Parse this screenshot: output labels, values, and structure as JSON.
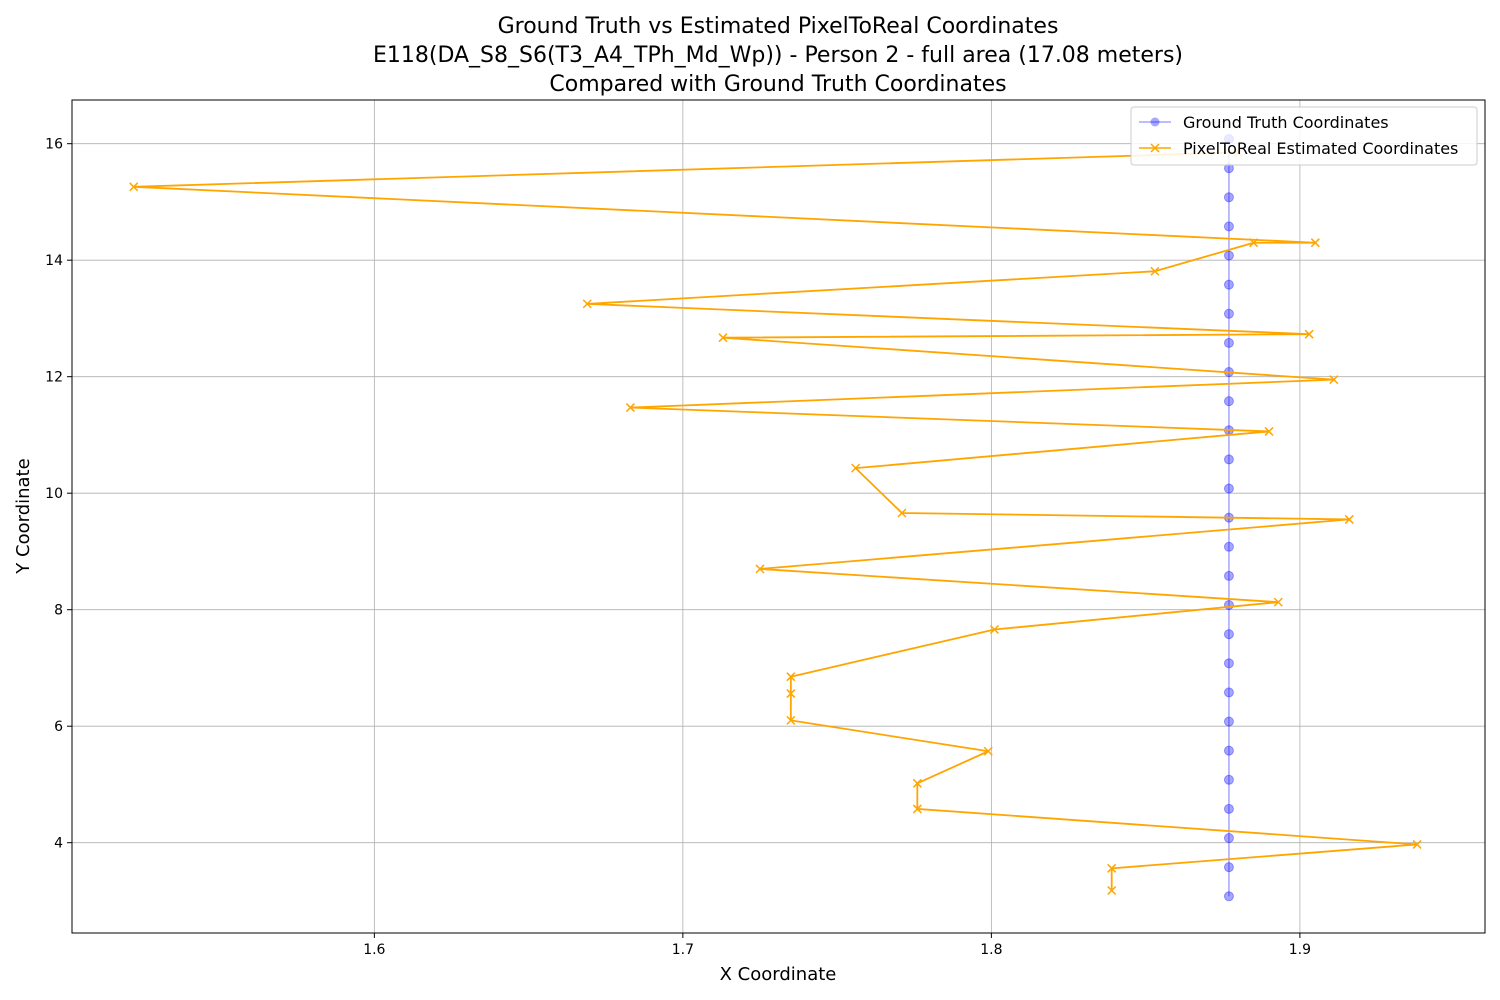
{
  "chart_data": {
    "type": "line",
    "title_lines": [
      "Ground Truth vs Estimated PixelToReal Coordinates",
      "E118(DA_S8_S6(T3_A4_TPh_Md_Wp)) - Person 2 - full area (17.08 meters)",
      "Compared with Ground Truth Coordinates"
    ],
    "xlabel": "X Coordinate",
    "ylabel": "Y Coordinate",
    "xlim": [
      1.502,
      1.96
    ],
    "ylim": [
      2.45,
      16.75
    ],
    "x_ticks": [
      1.6,
      1.7,
      1.8,
      1.9
    ],
    "x_tick_labels": [
      "1.6",
      "1.7",
      "1.8",
      "1.9"
    ],
    "y_ticks": [
      4,
      6,
      8,
      10,
      12,
      14,
      16
    ],
    "y_tick_labels": [
      "4",
      "6",
      "8",
      "10",
      "12",
      "14",
      "16"
    ],
    "grid": true,
    "legend_position": "top-right",
    "series": [
      {
        "name": "Ground Truth Coordinates",
        "color": "#0000ff",
        "marker": "circle",
        "alpha": 0.35,
        "x": [
          1.877,
          1.877,
          1.877,
          1.877,
          1.877,
          1.877,
          1.877,
          1.877,
          1.877,
          1.877,
          1.877,
          1.877,
          1.877,
          1.877,
          1.877,
          1.877,
          1.877,
          1.877,
          1.877,
          1.877,
          1.877,
          1.877,
          1.877,
          1.877,
          1.877,
          1.877,
          1.877,
          1.877
        ],
        "y": [
          3.08,
          3.58,
          4.08,
          4.58,
          5.08,
          5.58,
          6.08,
          6.58,
          7.08,
          7.58,
          8.08,
          8.58,
          9.08,
          9.58,
          10.08,
          10.58,
          11.08,
          11.58,
          12.08,
          12.58,
          13.08,
          13.58,
          14.08,
          14.58,
          15.08,
          15.58,
          16.08,
          16.08
        ]
      },
      {
        "name": "PixelToReal Estimated Coordinates",
        "color": "#ffa500",
        "marker": "x",
        "alpha": 1,
        "x": [
          1.839,
          1.839,
          1.938,
          1.776,
          1.776,
          1.799,
          1.735,
          1.735,
          1.735,
          1.801,
          1.893,
          1.725,
          1.916,
          1.771,
          1.756,
          1.89,
          1.683,
          1.911,
          1.713,
          1.903,
          1.669,
          1.853,
          1.885,
          1.905,
          1.522,
          1.88
        ],
        "y": [
          3.18,
          3.56,
          3.97,
          4.58,
          5.02,
          5.57,
          6.1,
          6.56,
          6.85,
          7.66,
          8.13,
          8.7,
          9.55,
          9.66,
          10.43,
          11.06,
          11.47,
          11.95,
          12.67,
          12.73,
          13.25,
          13.81,
          14.3,
          14.3,
          15.26,
          15.85
        ]
      }
    ]
  }
}
